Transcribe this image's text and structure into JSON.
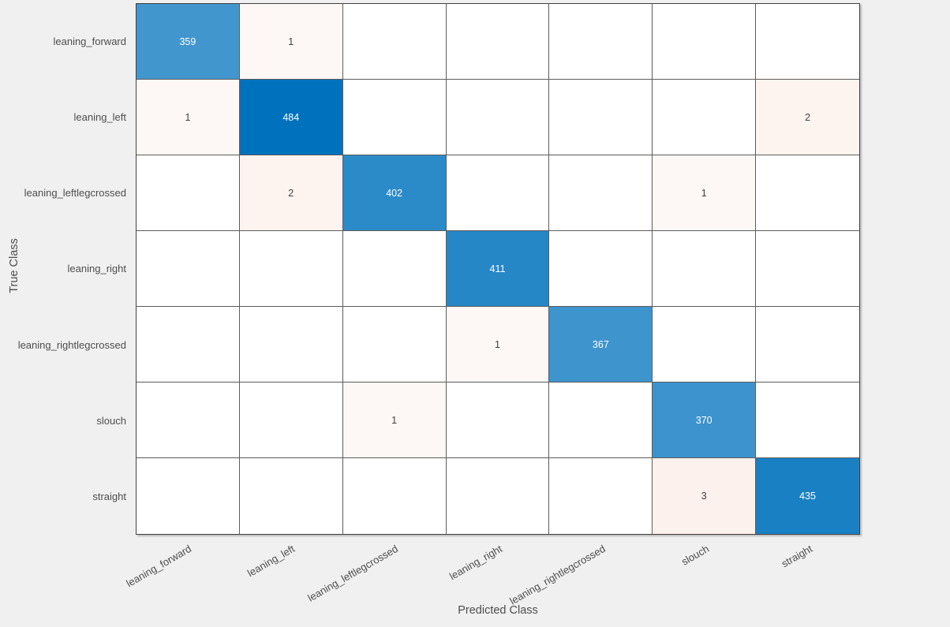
{
  "figure": {
    "background_color": "#f0f0f0",
    "grid_line_color": "#5c5c5c",
    "outer_border_color": "#414141",
    "label_color": "#4d4d4d"
  },
  "chart_data": {
    "type": "heatmap",
    "subtype": "confusion_matrix",
    "title": "",
    "xlabel": "Predicted Class",
    "ylabel": "True Class",
    "classes": [
      "leaning_forward",
      "leaning_left",
      "leaning_leftlegcrossed",
      "leaning_right",
      "leaning_rightlegcrossed",
      "slouch",
      "straight"
    ],
    "matrix": [
      [
        359,
        1,
        0,
        0,
        0,
        0,
        0
      ],
      [
        1,
        484,
        0,
        0,
        0,
        0,
        2
      ],
      [
        0,
        2,
        402,
        0,
        0,
        1,
        0
      ],
      [
        0,
        0,
        0,
        411,
        0,
        0,
        0
      ],
      [
        0,
        0,
        0,
        1,
        367,
        0,
        0
      ],
      [
        0,
        0,
        1,
        0,
        0,
        370,
        0
      ],
      [
        0,
        0,
        0,
        0,
        0,
        3,
        435
      ]
    ],
    "diagonal_color": "#0072bd",
    "offdiagonal_color": "#d95319",
    "zero_cell_color": "#ffffff",
    "diagonal_text_color": "#ffffff",
    "offdiagonal_text_color": "#404040",
    "legend_position": "none",
    "grid": true
  }
}
